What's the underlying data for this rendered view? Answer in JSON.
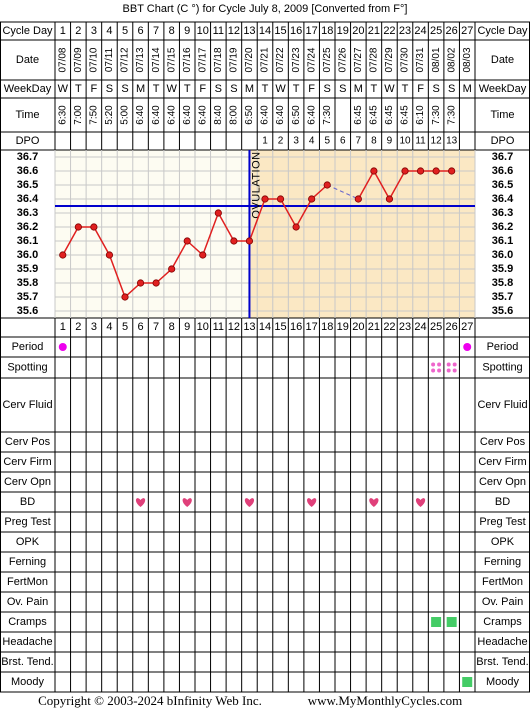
{
  "chart_data": {
    "type": "line",
    "title": "BBT Chart (C °) for Cycle July 8, 2009  [Converted from F°]",
    "row_labels": {
      "cycle_day": "Cycle Day",
      "date": "Date",
      "weekday": "WeekDay",
      "time": "Time",
      "dpo": "DPO"
    },
    "categories": [
      1,
      2,
      3,
      4,
      5,
      6,
      7,
      8,
      9,
      10,
      11,
      12,
      13,
      14,
      15,
      16,
      17,
      18,
      19,
      20,
      21,
      22,
      23,
      24,
      25,
      26,
      27
    ],
    "dates": [
      "07/08",
      "07/09",
      "07/10",
      "07/11",
      "07/12",
      "07/13",
      "07/14",
      "07/15",
      "07/16",
      "07/17",
      "07/18",
      "07/19",
      "07/20",
      "07/21",
      "07/22",
      "07/23",
      "07/24",
      "07/25",
      "07/26",
      "07/27",
      "07/28",
      "07/29",
      "07/30",
      "07/31",
      "08/01",
      "08/02",
      "08/03"
    ],
    "weekdays": [
      "W",
      "T",
      "F",
      "S",
      "S",
      "M",
      "T",
      "W",
      "T",
      "F",
      "S",
      "S",
      "M",
      "T",
      "W",
      "T",
      "F",
      "S",
      "S",
      "M",
      "T",
      "W",
      "T",
      "F",
      "S",
      "S",
      "M"
    ],
    "times": [
      "6:30",
      "7:00",
      "7:50",
      "5:20",
      "5:00",
      "6:40",
      "6:40",
      "6:40",
      "6:40",
      "6:40",
      "8:40",
      "8:00",
      "6:50",
      "6:40",
      "6:40",
      "6:50",
      "6:40",
      "7:30",
      null,
      "6:45",
      "6:45",
      "6:45",
      "6:45",
      "6:10",
      "7:30",
      "7:30",
      null
    ],
    "dpo": [
      null,
      null,
      null,
      null,
      null,
      null,
      null,
      null,
      null,
      null,
      null,
      null,
      null,
      1,
      2,
      3,
      4,
      5,
      6,
      7,
      8,
      9,
      10,
      11,
      12,
      13,
      null
    ],
    "series": [
      {
        "name": "BBT",
        "color": "#e02020",
        "values": [
          36.0,
          36.2,
          36.2,
          36.0,
          35.7,
          35.8,
          35.8,
          35.9,
          36.1,
          36.0,
          36.3,
          36.1,
          36.1,
          36.4,
          36.4,
          36.2,
          36.4,
          36.5,
          null,
          36.4,
          36.6,
          36.4,
          36.6,
          36.6,
          36.6,
          36.6,
          null
        ]
      }
    ],
    "ylim": [
      35.55,
      36.75
    ],
    "yticks": [
      36.7,
      36.6,
      36.5,
      36.4,
      36.3,
      36.2,
      36.1,
      {
        "value": 36.0,
        "label": "36.0"
      },
      35.9,
      35.8,
      35.7,
      35.6
    ],
    "coverline": 36.35,
    "ovulation_day": 13,
    "ovulation_label": "OVULATION",
    "observations": [
      {
        "label": "Period",
        "days": [
          1,
          27
        ],
        "symbol": "dot",
        "color": "#ee00ee"
      },
      {
        "label": "Spotting",
        "days": [
          25,
          26
        ],
        "symbol": "spots",
        "color": "#ee66cc"
      },
      {
        "label": "Cerv Fluid"
      },
      {
        "label": "Cerv Pos"
      },
      {
        "label": "Cerv Firm"
      },
      {
        "label": "Cerv Opn"
      },
      {
        "label": "BD",
        "days": [
          6,
          9,
          13,
          17,
          21,
          24
        ],
        "symbol": "heart",
        "color": "#e0407a"
      },
      {
        "label": "Preg Test"
      },
      {
        "label": "OPK"
      },
      {
        "label": "Ferning"
      },
      {
        "label": "FertMon"
      },
      {
        "label": "Ov. Pain"
      },
      {
        "label": "Cramps",
        "days": [
          25,
          26
        ],
        "symbol": "square",
        "color": "#44cc66"
      },
      {
        "label": "Headache"
      },
      {
        "label": "Brst. Tend."
      },
      {
        "label": "Moody",
        "days": [
          27
        ],
        "symbol": "square",
        "color": "#44cc66"
      }
    ],
    "footer": {
      "copyright": "Copyright © 2003-2024 bInfinity Web Inc.",
      "site": "www.MyMonthlyCycles.com"
    }
  }
}
